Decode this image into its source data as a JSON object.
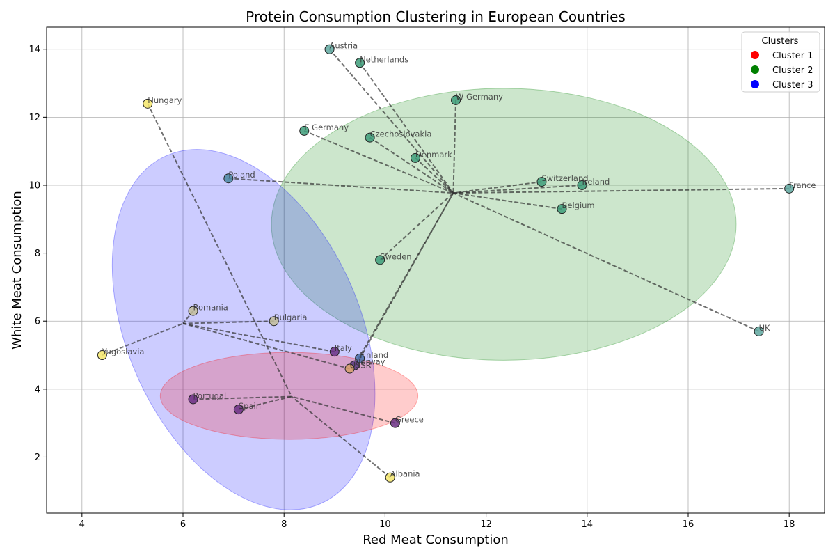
{
  "chart_data": {
    "type": "scatter",
    "title": "Protein Consumption Clustering in European Countries",
    "xlabel": "Red Meat Consumption",
    "ylabel": "White Meat Consumption",
    "xlim": [
      3.3,
      18.7
    ],
    "ylim": [
      0.35,
      14.65
    ],
    "xticks": [
      4,
      6,
      8,
      10,
      12,
      14,
      16,
      18
    ],
    "yticks": [
      2,
      4,
      6,
      8,
      10,
      12,
      14
    ],
    "grid": true,
    "legend": {
      "title": "Clusters",
      "position": "top-right",
      "entries": [
        {
          "label": "Cluster 1",
          "color": "#ff0000"
        },
        {
          "label": "Cluster 2",
          "color": "#008000"
        },
        {
          "label": "Cluster 3",
          "color": "#0000ff"
        }
      ]
    },
    "colors": {
      "yellow": "#fde725",
      "teal": "#35b779",
      "cyan": "#31688e",
      "purple": "#440154",
      "olive": "#b5b98a",
      "edge": "#222222",
      "line": "#333333"
    },
    "centroids": [
      {
        "x": 11.35,
        "y": 9.77
      },
      {
        "x": 8.15,
        "y": 3.78
      },
      {
        "x": 6.0,
        "y": 5.93
      }
    ],
    "ellipses": [
      {
        "cx": 12.35,
        "cy": 8.85,
        "rx_data": 4.6,
        "ry_data": 4.0,
        "rotate": 0,
        "color": "#008000",
        "opacity": 0.2
      },
      {
        "cx": 7.2,
        "cy": 5.75,
        "rx_data": 2.3,
        "ry_data": 5.6,
        "rotate": -24,
        "color": "#0000ff",
        "opacity": 0.2
      },
      {
        "cx": 8.1,
        "cy": 3.8,
        "rx_data": 2.55,
        "ry_data": 1.28,
        "rotate": 0,
        "color": "#ff0000",
        "opacity": 0.2
      }
    ],
    "points": [
      {
        "label": "Austria",
        "x": 8.9,
        "y": 14.0,
        "color": "#5fa8a0",
        "centroid": 0
      },
      {
        "label": "Netherlands",
        "x": 9.5,
        "y": 13.6,
        "color": "#3d9c79",
        "centroid": 0
      },
      {
        "label": "W Germany",
        "x": 11.4,
        "y": 12.5,
        "color": "#3d9c79",
        "centroid": 0
      },
      {
        "label": "E Germany",
        "x": 8.4,
        "y": 11.6,
        "color": "#3d9c79",
        "centroid": 0
      },
      {
        "label": "Czechoslovakia",
        "x": 9.7,
        "y": 11.4,
        "color": "#3d9c79",
        "centroid": 0
      },
      {
        "label": "Denmark",
        "x": 10.6,
        "y": 10.8,
        "color": "#3d9c79",
        "centroid": 0
      },
      {
        "label": "Poland",
        "x": 6.9,
        "y": 10.2,
        "color": "#4a86a0",
        "centroid": 0
      },
      {
        "label": "Switzerland",
        "x": 13.1,
        "y": 10.1,
        "color": "#3d9c79",
        "centroid": 0
      },
      {
        "label": "Ireland",
        "x": 13.9,
        "y": 10.0,
        "color": "#3d9c79",
        "centroid": 0
      },
      {
        "label": "France",
        "x": 18.0,
        "y": 9.9,
        "color": "#5fa8a0",
        "centroid": 0
      },
      {
        "label": "Belgium",
        "x": 13.5,
        "y": 9.3,
        "color": "#3d9c79",
        "centroid": 0
      },
      {
        "label": "Sweden",
        "x": 9.9,
        "y": 7.8,
        "color": "#3d9c79",
        "centroid": 0
      },
      {
        "label": "UK",
        "x": 17.4,
        "y": 5.7,
        "color": "#5fa8a0",
        "centroid": 0
      },
      {
        "label": "Finland",
        "x": 9.5,
        "y": 4.9,
        "color": "#4a6fa8",
        "centroid": 0
      },
      {
        "label": "Norway",
        "x": 9.4,
        "y": 4.7,
        "color": "#5a3a80",
        "centroid": 0
      },
      {
        "label": "Hungary",
        "x": 5.3,
        "y": 12.4,
        "color": "#f5e66b",
        "centroid": 1
      },
      {
        "label": "Albania",
        "x": 10.1,
        "y": 1.4,
        "color": "#f5e66b",
        "centroid": 1
      },
      {
        "label": "Portugal",
        "x": 6.2,
        "y": 3.7,
        "color": "#6a2f82",
        "centroid": 1
      },
      {
        "label": "Spain",
        "x": 7.1,
        "y": 3.4,
        "color": "#6a2f82",
        "centroid": 1
      },
      {
        "label": "Greece",
        "x": 10.2,
        "y": 3.0,
        "color": "#6a2f82",
        "centroid": 1
      },
      {
        "label": "Romania",
        "x": 6.2,
        "y": 6.3,
        "color": "#c2bd9a",
        "centroid": 2
      },
      {
        "label": "Bulgaria",
        "x": 7.8,
        "y": 6.0,
        "color": "#c2bd9a",
        "centroid": 2
      },
      {
        "label": "Yugoslavia",
        "x": 4.4,
        "y": 5.0,
        "color": "#f5e66b",
        "centroid": 2
      },
      {
        "label": "Italy",
        "x": 9.0,
        "y": 5.1,
        "color": "#6a2f82",
        "centroid": 2
      },
      {
        "label": "USSR",
        "x": 9.3,
        "y": 4.6,
        "color": "#d6a06a",
        "centroid": 2
      }
    ]
  }
}
